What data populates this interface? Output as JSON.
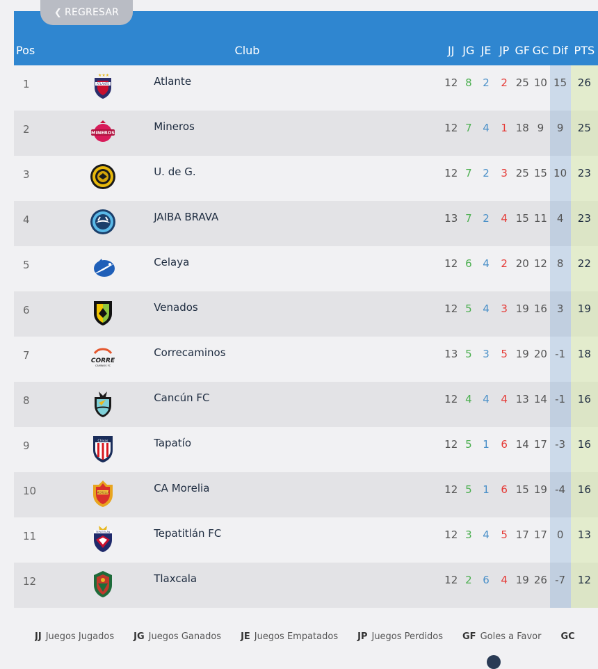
{
  "back_button": {
    "label": "REGRESAR",
    "icon": "chevron-left-icon"
  },
  "header": {
    "pos": "Pos",
    "club": "Club",
    "jj": "JJ",
    "jg": "JG",
    "je": "JE",
    "jp": "JP",
    "gf": "GF",
    "gc": "GC",
    "dif": "Dif",
    "pts": "PTS"
  },
  "colors": {
    "header_bg": "#2f86d0",
    "jg": "#4caf50",
    "je": "#4a90c8",
    "jp": "#e53935",
    "dif_col": "#c3d7ec",
    "pts_col": "#e9efd0"
  },
  "rows": [
    {
      "pos": "1",
      "club": "Atlante",
      "jj": "12",
      "jg": "8",
      "je": "2",
      "jp": "2",
      "gf": "25",
      "gc": "10",
      "dif": "15",
      "pts": "26",
      "crest": "atlante-crest-icon"
    },
    {
      "pos": "2",
      "club": "Mineros",
      "jj": "12",
      "jg": "7",
      "je": "4",
      "jp": "1",
      "gf": "18",
      "gc": "9",
      "dif": "9",
      "pts": "25",
      "crest": "mineros-crest-icon"
    },
    {
      "pos": "3",
      "club": "U. de G.",
      "jj": "12",
      "jg": "7",
      "je": "2",
      "jp": "3",
      "gf": "25",
      "gc": "15",
      "dif": "10",
      "pts": "23",
      "crest": "udeg-crest-icon"
    },
    {
      "pos": "4",
      "club": "JAIBA BRAVA",
      "jj": "13",
      "jg": "7",
      "je": "2",
      "jp": "4",
      "gf": "15",
      "gc": "11",
      "dif": "4",
      "pts": "23",
      "crest": "jaiba-brava-crest-icon"
    },
    {
      "pos": "5",
      "club": "Celaya",
      "jj": "12",
      "jg": "6",
      "je": "4",
      "jp": "2",
      "gf": "20",
      "gc": "12",
      "dif": "8",
      "pts": "22",
      "crest": "celaya-crest-icon"
    },
    {
      "pos": "6",
      "club": "Venados",
      "jj": "12",
      "jg": "5",
      "je": "4",
      "jp": "3",
      "gf": "19",
      "gc": "16",
      "dif": "3",
      "pts": "19",
      "crest": "venados-crest-icon"
    },
    {
      "pos": "7",
      "club": "Correcaminos",
      "jj": "13",
      "jg": "5",
      "je": "3",
      "jp": "5",
      "gf": "19",
      "gc": "20",
      "dif": "-1",
      "pts": "18",
      "crest": "correcaminos-crest-icon"
    },
    {
      "pos": "8",
      "club": "Cancún FC",
      "jj": "12",
      "jg": "4",
      "je": "4",
      "jp": "4",
      "gf": "13",
      "gc": "14",
      "dif": "-1",
      "pts": "16",
      "crest": "cancun-crest-icon"
    },
    {
      "pos": "9",
      "club": "Tapatío",
      "jj": "12",
      "jg": "5",
      "je": "1",
      "jp": "6",
      "gf": "14",
      "gc": "17",
      "dif": "-3",
      "pts": "16",
      "crest": "tapatio-crest-icon"
    },
    {
      "pos": "10",
      "club": "CA Morelia",
      "jj": "12",
      "jg": "5",
      "je": "1",
      "jp": "6",
      "gf": "15",
      "gc": "19",
      "dif": "-4",
      "pts": "16",
      "crest": "morelia-crest-icon"
    },
    {
      "pos": "11",
      "club": "Tepatitlán FC",
      "jj": "12",
      "jg": "3",
      "je": "4",
      "jp": "5",
      "gf": "17",
      "gc": "17",
      "dif": "0",
      "pts": "13",
      "crest": "tepatitlan-crest-icon"
    },
    {
      "pos": "12",
      "club": "Tlaxcala",
      "jj": "12",
      "jg": "2",
      "je": "6",
      "jp": "4",
      "gf": "19",
      "gc": "26",
      "dif": "-7",
      "pts": "12",
      "crest": "tlaxcala-crest-icon"
    }
  ],
  "legend": [
    {
      "abbr": "JJ",
      "text": "Juegos Jugados"
    },
    {
      "abbr": "JG",
      "text": "Juegos Ganados"
    },
    {
      "abbr": "JE",
      "text": "Juegos Empatados"
    },
    {
      "abbr": "JP",
      "text": "Juegos Perdidos"
    },
    {
      "abbr": "GF",
      "text": "Goles a Favor"
    },
    {
      "abbr": "GC",
      "text": ""
    }
  ]
}
